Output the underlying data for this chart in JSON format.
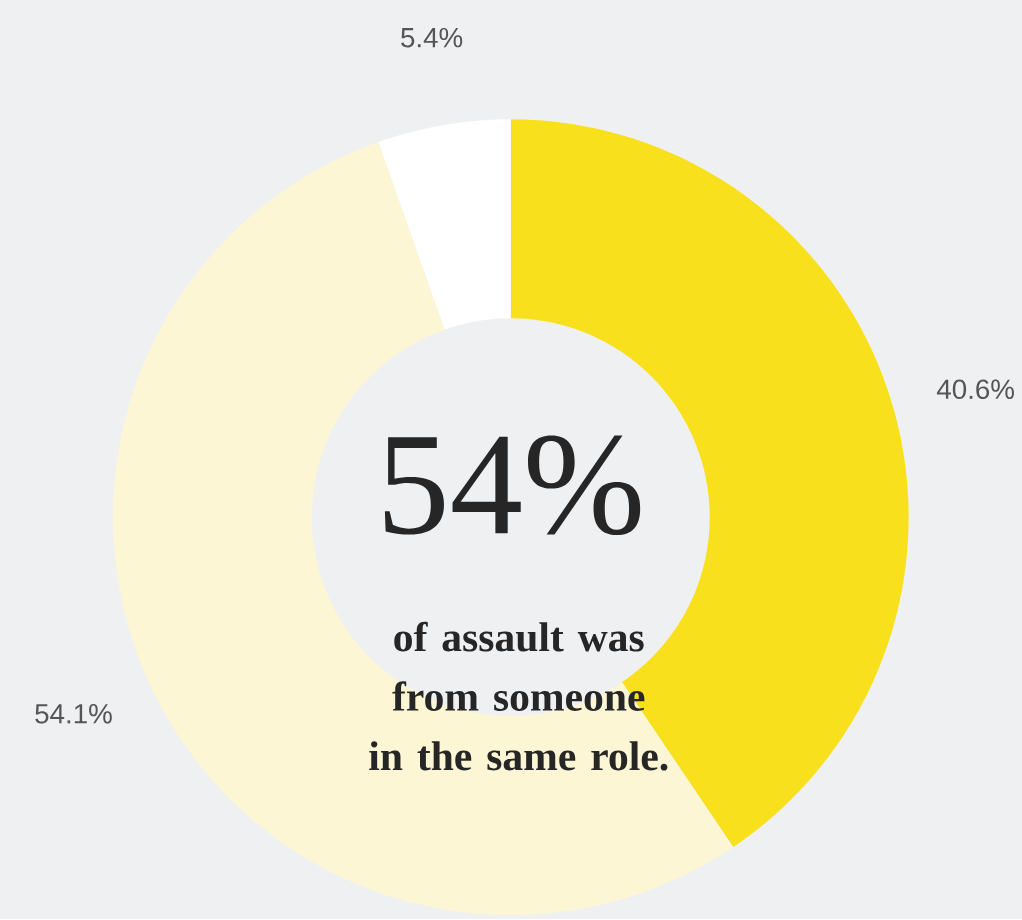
{
  "chart_data": {
    "type": "donut",
    "categories": [
      null,
      null,
      null
    ],
    "values": [
      40.6,
      54.1,
      5.4
    ],
    "colors": [
      "#f8e01c",
      "#fcf6d4",
      "#ffffff"
    ],
    "value_labels": [
      "40.6%",
      "54.1%",
      "5.4%"
    ],
    "annotations": [
      "54%",
      "of assault was from someone in the same role."
    ]
  }
}
